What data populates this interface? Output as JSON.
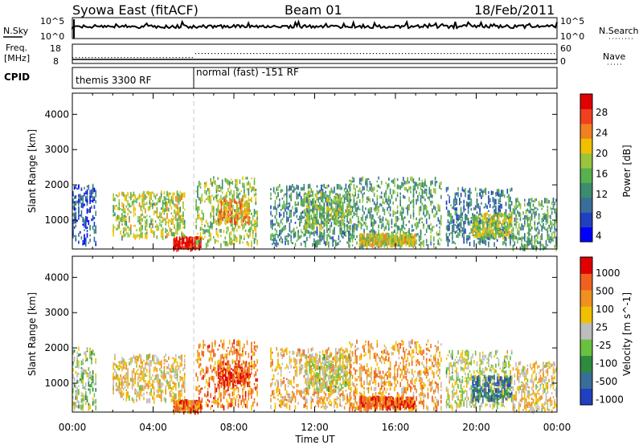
{
  "header": {
    "title": "Syowa East (fitACF)",
    "beam": "Beam 01",
    "date": "18/Feb/2011"
  },
  "top_panels": {
    "nsky_label": "N.Sky",
    "nsky_ticks": [
      "10^5",
      "10^0"
    ],
    "nsearch_label": "N.Search",
    "nsearch_ticks": [
      "10^5",
      "10^0"
    ],
    "freq_label_1": "Freq.",
    "freq_label_2": "[MHz]",
    "freq_ticks": [
      "18",
      "8"
    ],
    "nave_label": "Nave",
    "nave_ticks": [
      "60",
      "0"
    ],
    "cpid_label": "CPID",
    "cpid_modes": [
      {
        "name": "themis 3300 RF",
        "start_hour": 0,
        "end_hour": 6
      },
      {
        "name": "normal (fast) -151 RF",
        "start_hour": 6,
        "end_hour": 24
      }
    ]
  },
  "colors": {
    "power_scale": [
      "#0000ff",
      "#2040c0",
      "#3a6e9a",
      "#3c8c6e",
      "#58b04e",
      "#9ac43c",
      "#f0c000",
      "#f08020",
      "#f04020",
      "#e00000"
    ],
    "velocity_scale": [
      "#2040c0",
      "#3a6e9a",
      "#2e8a3e",
      "#6ac040",
      "#bdbdbd",
      "#f0c000",
      "#f09020",
      "#f06020",
      "#e00000"
    ]
  },
  "chart_data": [
    {
      "type": "heatmap",
      "name": "power",
      "xlabel": "",
      "ylabel": "Slant Range [km]",
      "x_unit": "hour UT",
      "xlim": [
        0,
        24
      ],
      "ylim": [
        180,
        4600
      ],
      "y_ticks": [
        1000,
        2000,
        3000,
        4000
      ],
      "colorbar_label": "Power [dB]",
      "colorbar_ticks": [
        "28",
        "24",
        "20",
        "16",
        "12",
        "8",
        "4"
      ],
      "colorbar_range": [
        0,
        30
      ],
      "scatter_regions": [
        {
          "t0": 0.0,
          "t1": 1.2,
          "r0": 300,
          "r1": 2000,
          "level": 0.2
        },
        {
          "t0": 2.0,
          "t1": 5.6,
          "r0": 500,
          "r1": 1800,
          "level": 0.55
        },
        {
          "t0": 5.0,
          "t1": 6.4,
          "r0": 200,
          "r1": 500,
          "level": 0.95
        },
        {
          "t0": 6.1,
          "t1": 9.2,
          "r0": 300,
          "r1": 2200,
          "level": 0.5
        },
        {
          "t0": 7.2,
          "t1": 8.8,
          "r0": 900,
          "r1": 1600,
          "level": 0.7
        },
        {
          "t0": 9.8,
          "t1": 13.8,
          "r0": 300,
          "r1": 2000,
          "level": 0.35
        },
        {
          "t0": 11.5,
          "t1": 13.8,
          "r0": 800,
          "r1": 1800,
          "level": 0.5
        },
        {
          "t0": 13.7,
          "t1": 18.3,
          "r0": 250,
          "r1": 2200,
          "level": 0.4
        },
        {
          "t0": 14.2,
          "t1": 17.0,
          "r0": 300,
          "r1": 600,
          "level": 0.6
        },
        {
          "t0": 18.5,
          "t1": 21.8,
          "r0": 300,
          "r1": 1900,
          "level": 0.3
        },
        {
          "t0": 19.8,
          "t1": 21.8,
          "r0": 500,
          "r1": 1200,
          "level": 0.55
        },
        {
          "t0": 21.8,
          "t1": 24.0,
          "r0": 200,
          "r1": 1600,
          "level": 0.4
        }
      ]
    },
    {
      "type": "heatmap",
      "name": "velocity",
      "xlabel": "Time UT",
      "ylabel": "Slant Range [km]",
      "x_unit": "hour UT",
      "xlim": [
        0,
        24
      ],
      "ylim": [
        180,
        4600
      ],
      "x_ticks": [
        "00:00",
        "04:00",
        "08:00",
        "12:00",
        "16:00",
        "20:00",
        "00:00"
      ],
      "y_ticks": [
        1000,
        2000,
        3000,
        4000
      ],
      "colorbar_label": "Velocity [m s^-1]",
      "colorbar_ticks": [
        "1000",
        "500",
        "100",
        "25",
        "-25",
        "-100",
        "-500",
        "-1000"
      ],
      "colorbar_range": [
        -1200,
        1200
      ],
      "scatter_regions": [
        {
          "t0": 0.0,
          "t1": 1.2,
          "r0": 300,
          "r1": 2000,
          "level": 0.45
        },
        {
          "t0": 2.0,
          "t1": 5.6,
          "r0": 500,
          "r1": 1800,
          "level": 0.6
        },
        {
          "t0": 5.0,
          "t1": 6.4,
          "r0": 200,
          "r1": 500,
          "level": 0.8
        },
        {
          "t0": 6.1,
          "t1": 9.2,
          "r0": 300,
          "r1": 2200,
          "level": 0.75
        },
        {
          "t0": 7.2,
          "t1": 8.8,
          "r0": 900,
          "r1": 1600,
          "level": 0.88
        },
        {
          "t0": 9.8,
          "t1": 13.8,
          "r0": 300,
          "r1": 2000,
          "level": 0.65
        },
        {
          "t0": 11.5,
          "t1": 13.8,
          "r0": 800,
          "r1": 1800,
          "level": 0.5
        },
        {
          "t0": 13.7,
          "t1": 18.3,
          "r0": 250,
          "r1": 2200,
          "level": 0.7
        },
        {
          "t0": 14.2,
          "t1": 17.0,
          "r0": 300,
          "r1": 600,
          "level": 0.82
        },
        {
          "t0": 18.5,
          "t1": 21.8,
          "r0": 300,
          "r1": 1900,
          "level": 0.5
        },
        {
          "t0": 19.8,
          "t1": 21.8,
          "r0": 500,
          "r1": 1200,
          "level": 0.2
        },
        {
          "t0": 21.8,
          "t1": 24.0,
          "r0": 200,
          "r1": 1600,
          "level": 0.6
        }
      ]
    }
  ]
}
